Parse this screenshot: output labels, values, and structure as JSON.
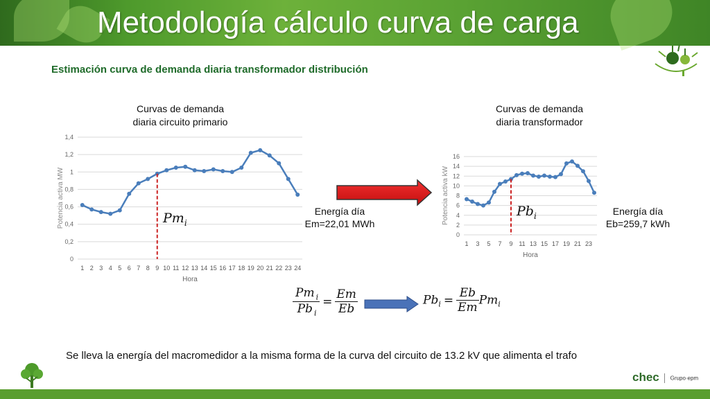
{
  "header": {
    "title": "Metodología cálculo curva de carga"
  },
  "subtitle": "Estimación curva de demanda diaria transformador distribución",
  "left_chart_title": [
    "Curvas de demanda",
    "diaria circuito primario"
  ],
  "right_chart_title": [
    "Curvas de demanda",
    "diaria transformador"
  ],
  "left_energy": [
    "Energía día",
    "Em=22,01 MWh"
  ],
  "right_energy": [
    "Energía día",
    "Eb=259,7 kWh"
  ],
  "pm_label": "Pm",
  "pm_sub": "i",
  "pb_label": "Pb",
  "pb_sub": "i",
  "formula1": {
    "num_left": "Pm",
    "num_left_sub": "i",
    "den_left": "Pb",
    "den_left_sub": "i",
    "num_right": "Em",
    "den_right": "Eb"
  },
  "formula2": {
    "lhs": "Pb",
    "lhs_sub": "i",
    "num": "Eb",
    "den": "Em",
    "tail": "Pm",
    "tail_sub": "i"
  },
  "bottom_text": "Se lleva la energía del macromedidor a la misma forma de la curva del circuito de 13.2 kV que alimenta el trafo",
  "colors": {
    "line": "#4a7ebb",
    "marker_line": "#cc2222",
    "arrow_red": "#e01b1b",
    "arrow_blue": "#4a72b8",
    "brand_green": "#5a9e2f"
  },
  "icons": [
    "leaf-banner-decoration",
    "plant-logo-icon",
    "tree-logo-icon",
    "chec-logo"
  ],
  "logo_text": {
    "brand": "chec",
    "group": "Grupo·epm"
  },
  "chart_data": [
    {
      "type": "line",
      "title": "",
      "xlabel": "Hora",
      "ylabel": "Potencia activa MW",
      "x": [
        1,
        2,
        3,
        4,
        5,
        6,
        7,
        8,
        9,
        10,
        11,
        12,
        13,
        14,
        15,
        16,
        17,
        18,
        19,
        20,
        21,
        22,
        23,
        24
      ],
      "values": [
        0.62,
        0.57,
        0.54,
        0.52,
        0.56,
        0.75,
        0.87,
        0.92,
        0.98,
        1.02,
        1.05,
        1.06,
        1.02,
        1.01,
        1.03,
        1.01,
        1.0,
        1.05,
        1.22,
        1.25,
        1.19,
        1.1,
        0.92,
        0.74
      ],
      "ylim": [
        0,
        1.4
      ],
      "yticks": [
        "0",
        "0,2",
        "0,4",
        "0,6",
        "0,8",
        "1",
        "1,2",
        "1,4"
      ],
      "xticks": [
        "1",
        "2",
        "3",
        "4",
        "5",
        "6",
        "7",
        "8",
        "9",
        "10",
        "11",
        "12",
        "13",
        "14",
        "15",
        "16",
        "17",
        "18",
        "19",
        "20",
        "21",
        "22",
        "23",
        "24"
      ],
      "marker_x": 9,
      "grid": true
    },
    {
      "type": "line",
      "title": "",
      "xlabel": "Hora",
      "ylabel": "Potencia activa kW",
      "x": [
        1,
        2,
        3,
        4,
        5,
        6,
        7,
        8,
        9,
        10,
        11,
        12,
        13,
        14,
        15,
        16,
        17,
        18,
        19,
        20,
        21,
        22,
        23,
        24
      ],
      "values": [
        7.3,
        6.8,
        6.3,
        6.0,
        6.6,
        8.8,
        10.4,
        10.9,
        11.4,
        12.2,
        12.5,
        12.6,
        12.1,
        11.9,
        12.1,
        11.9,
        11.8,
        12.4,
        14.6,
        15.0,
        14.1,
        13.0,
        11.0,
        8.6
      ],
      "ylim": [
        0,
        16
      ],
      "yticks": [
        "0",
        "2",
        "4",
        "6",
        "8",
        "10",
        "12",
        "14",
        "16"
      ],
      "xticks": [
        "1",
        "3",
        "5",
        "7",
        "9",
        "11",
        "13",
        "15",
        "17",
        "19",
        "21",
        "23"
      ],
      "marker_x": 9,
      "grid": true
    }
  ]
}
